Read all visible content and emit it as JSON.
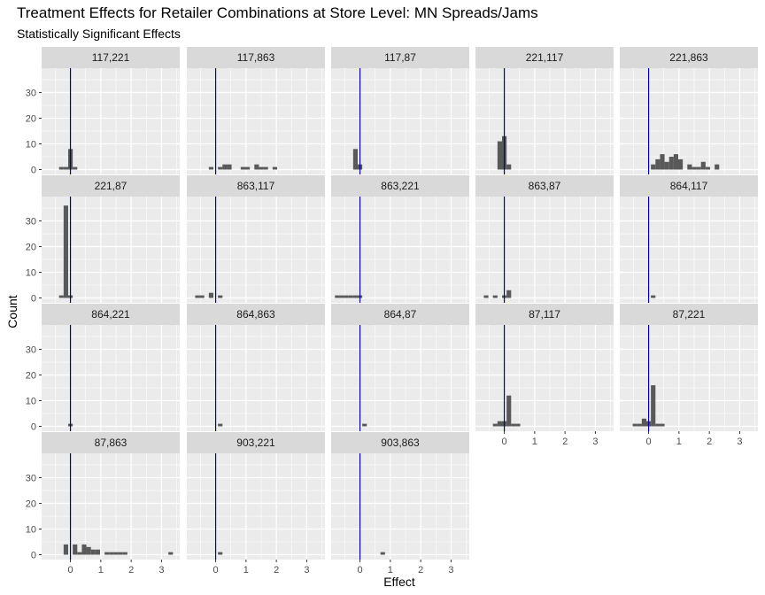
{
  "chart_data": {
    "type": "bar",
    "title": "Treatment Effects for Retailer Combinations at Store Level: MN Spreads/Jams",
    "subtitle": "Statistically Significant Effects",
    "xlabel": "Effect",
    "ylabel": "Count",
    "xlim": [
      -0.95,
      3.6
    ],
    "ylim": [
      -1.9,
      39.5
    ],
    "x_ticks": [
      0,
      1,
      2,
      3
    ],
    "y_ticks": [
      0,
      10,
      20,
      30
    ],
    "bin_width": 0.15,
    "reference_line": 0,
    "colors": {
      "bars": "#595959",
      "reference_line": "#00008b",
      "panel": "#ebebeb",
      "strip": "#d9d9d9",
      "grid": "#ffffff"
    },
    "panels": [
      {
        "label": "117,221",
        "bins": [
          [
            -0.3,
            1
          ],
          [
            -0.15,
            1
          ],
          [
            0,
            8
          ],
          [
            0.15,
            1
          ]
        ]
      },
      {
        "label": "117,863",
        "bins": [
          [
            -0.15,
            1
          ],
          [
            0.15,
            1
          ],
          [
            0.3,
            2
          ],
          [
            0.45,
            2
          ],
          [
            0.9,
            1
          ],
          [
            1.05,
            1
          ],
          [
            1.35,
            2
          ],
          [
            1.5,
            1
          ],
          [
            1.65,
            1
          ],
          [
            1.95,
            1
          ]
        ]
      },
      {
        "label": "117,87",
        "bins": [
          [
            -0.15,
            8
          ],
          [
            0,
            2
          ]
        ]
      },
      {
        "label": "221,117",
        "bins": [
          [
            -0.15,
            11
          ],
          [
            0,
            13
          ],
          [
            0.15,
            2
          ]
        ]
      },
      {
        "label": "221,863",
        "bins": [
          [
            0.15,
            2
          ],
          [
            0.3,
            4
          ],
          [
            0.45,
            6
          ],
          [
            0.6,
            3
          ],
          [
            0.75,
            5
          ],
          [
            0.9,
            6
          ],
          [
            1.05,
            4
          ],
          [
            1.35,
            2
          ],
          [
            1.5,
            1
          ],
          [
            1.65,
            1
          ],
          [
            1.8,
            3
          ],
          [
            1.95,
            1
          ],
          [
            2.25,
            2
          ]
        ]
      },
      {
        "label": "221,87",
        "bins": [
          [
            -0.3,
            1
          ],
          [
            -0.15,
            36
          ],
          [
            0,
            1
          ]
        ]
      },
      {
        "label": "863,117",
        "bins": [
          [
            -0.6,
            1
          ],
          [
            -0.45,
            1
          ],
          [
            -0.15,
            2
          ],
          [
            0.15,
            1
          ]
        ]
      },
      {
        "label": "863,221",
        "bins": [
          [
            -0.75,
            1
          ],
          [
            -0.6,
            1
          ],
          [
            -0.45,
            1
          ],
          [
            -0.3,
            1
          ],
          [
            -0.15,
            1
          ],
          [
            0,
            1
          ]
        ]
      },
      {
        "label": "863,87",
        "bins": [
          [
            -0.6,
            1
          ],
          [
            -0.3,
            1
          ],
          [
            0,
            1
          ],
          [
            0.15,
            3
          ]
        ]
      },
      {
        "label": "864,117",
        "bins": [
          [
            0.15,
            1
          ]
        ]
      },
      {
        "label": "864,221",
        "bins": [
          [
            0,
            1
          ]
        ]
      },
      {
        "label": "864,863",
        "bins": [
          [
            0.15,
            1
          ]
        ]
      },
      {
        "label": "864,87",
        "bins": [
          [
            0.15,
            1
          ]
        ]
      },
      {
        "label": "87,117",
        "bins": [
          [
            -0.3,
            1
          ],
          [
            -0.15,
            2
          ],
          [
            0,
            2
          ],
          [
            0.15,
            12
          ],
          [
            0.3,
            1
          ],
          [
            0.45,
            1
          ]
        ]
      },
      {
        "label": "87,221",
        "bins": [
          [
            -0.45,
            1
          ],
          [
            -0.3,
            1
          ],
          [
            -0.15,
            3
          ],
          [
            0,
            2
          ],
          [
            0.15,
            16
          ],
          [
            0.3,
            1
          ],
          [
            0.45,
            1
          ]
        ]
      },
      {
        "label": "87,863",
        "bins": [
          [
            -0.15,
            4
          ],
          [
            0.15,
            4
          ],
          [
            0.3,
            1
          ],
          [
            0.45,
            4
          ],
          [
            0.6,
            3
          ],
          [
            0.75,
            2
          ],
          [
            0.9,
            2
          ],
          [
            1.2,
            1
          ],
          [
            1.35,
            1
          ],
          [
            1.5,
            1
          ],
          [
            1.65,
            1
          ],
          [
            1.8,
            1
          ],
          [
            3.3,
            1
          ]
        ]
      },
      {
        "label": "903,221",
        "bins": [
          [
            0.15,
            1
          ]
        ]
      },
      {
        "label": "903,863",
        "bins": [
          [
            0.75,
            1
          ]
        ]
      }
    ]
  }
}
